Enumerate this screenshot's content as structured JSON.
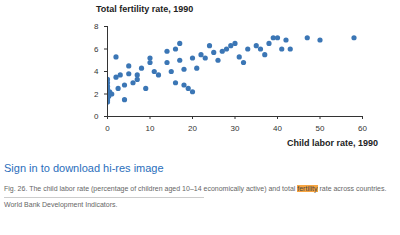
{
  "chart_data": {
    "type": "scatter",
    "y_label": "Total fertility rate, 1990",
    "x_label": "Child labor rate, 1990",
    "color": "#3b76b5",
    "marker": "circle",
    "grid": false,
    "xlim": [
      0,
      60
    ],
    "xticks": [
      0,
      10,
      20,
      30,
      40,
      50,
      60
    ],
    "ylim": [
      0,
      8
    ],
    "yticks": [
      0,
      2,
      4,
      6,
      8
    ],
    "x": [
      0,
      0,
      0,
      0,
      0,
      0,
      0,
      0,
      0,
      0,
      0,
      0.3,
      0.5,
      1,
      2,
      2,
      2.5,
      3,
      4,
      4,
      5,
      5,
      6,
      7,
      7,
      8,
      9,
      10,
      10,
      11,
      12,
      14,
      14,
      15,
      16,
      16,
      17,
      17,
      18,
      18,
      19,
      20,
      20,
      21,
      22,
      23,
      24,
      25,
      26,
      27,
      28,
      29,
      30,
      31,
      32,
      33,
      35,
      36,
      37,
      38,
      39,
      40,
      41,
      42,
      43,
      47,
      50,
      58
    ],
    "values": [
      1.3,
      1.5,
      1.7,
      1.9,
      2.1,
      2.3,
      2.5,
      2.7,
      3.0,
      3.3,
      1.4,
      1.8,
      2.2,
      2.0,
      3.5,
      5.3,
      2.5,
      3.7,
      2.8,
      1.5,
      3.8,
      4.5,
      3.0,
      3.3,
      3.7,
      4.3,
      2.5,
      5.2,
      4.8,
      4.0,
      3.7,
      5.8,
      4.8,
      4.0,
      3.0,
      6.0,
      6.5,
      5.0,
      4.2,
      2.8,
      2.5,
      5.2,
      2.2,
      4.3,
      5.5,
      5.2,
      6.3,
      5.7,
      5.0,
      5.8,
      6.0,
      6.3,
      6.5,
      5.3,
      4.8,
      6.0,
      6.3,
      6.0,
      5.5,
      6.5,
      7.0,
      7.0,
      6.0,
      6.8,
      6.0,
      7.0,
      6.8,
      7.0
    ]
  },
  "link": "Sign in to download hi-res image",
  "caption": {
    "before": "Fig. 26. The child labor rate (percentage of children aged 10–14 economically active) and total ",
    "highlighted": "fertility",
    "after": " rate across countries."
  },
  "source": "World Bank Development Indicators."
}
